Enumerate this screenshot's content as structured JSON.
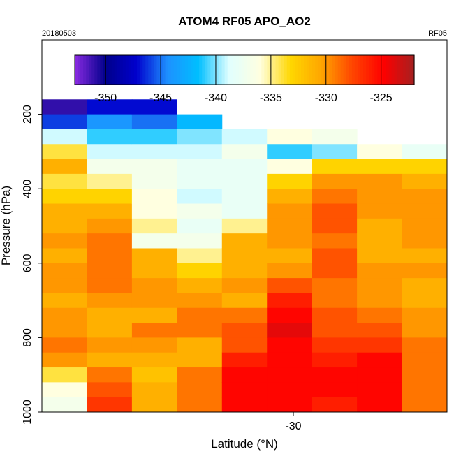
{
  "chart_data": {
    "type": "heatmap",
    "title": "ATOM4 RF05 APO_AO2",
    "top_left_label": "20180503",
    "top_right_label": "RF05",
    "xlabel": "Latitude (°N)",
    "ylabel": "Pressure (hPa)",
    "x_ticks": [
      -30
    ],
    "x_tick_labels": [
      "-30"
    ],
    "y_ticks": [
      200,
      400,
      600,
      800,
      1000
    ],
    "y_tick_labels": [
      "200",
      "400",
      "600",
      "800",
      "1000"
    ],
    "y_range": [
      1000,
      0
    ],
    "y_reversed": true,
    "legend": {
      "type": "colorbar",
      "placement": "top",
      "range": [
        -352.8,
        -322
      ],
      "ticks": [
        -350,
        -345,
        -340,
        -335,
        -330,
        -325
      ],
      "tick_labels": [
        "-350",
        "-345",
        "-340",
        "-335",
        "-330",
        "-325"
      ],
      "colors": [
        "#8a2be2",
        "#00008b",
        "#0000cd",
        "#1e90ff",
        "#00bfff",
        "#e0ffff",
        "#ffffe0",
        "#ffd700",
        "#ffa500",
        "#ff4500",
        "#ff0000",
        "#a52020"
      ]
    },
    "pressure_levels": [
      180,
      220,
      260,
      300,
      340,
      380,
      420,
      460,
      500,
      540,
      580,
      620,
      660,
      700,
      740,
      780,
      820,
      860,
      900,
      940,
      980
    ],
    "column_values": [
      [
        -351,
        -346,
        -339,
        -334,
        -331,
        -334,
        -333,
        -331,
        -331,
        -330,
        -331,
        -330,
        -330,
        -331,
        -330,
        -330,
        -329,
        -330,
        -334,
        -336,
        -337
      ],
      [
        -347,
        -344,
        -341,
        -339,
        -337,
        -335,
        -333,
        -331,
        -330,
        -329,
        -329,
        -329,
        -329,
        -330,
        -331,
        -331,
        -330,
        -331,
        -329,
        -328,
        -327
      ],
      [
        -347,
        -345,
        -341,
        -339,
        -337,
        -337,
        -336,
        -336,
        -335,
        -337,
        -331,
        -331,
        -330,
        -330,
        -331,
        -329,
        -330,
        -331,
        -332,
        -331,
        -331
      ],
      [
        null,
        -342,
        -340,
        -339,
        -338,
        -338,
        -339,
        -337,
        -338,
        -337,
        -335,
        -333,
        -331,
        -330,
        -329,
        -329,
        -331,
        -331,
        -329,
        -329,
        -329
      ],
      [
        null,
        null,
        -339,
        -337,
        -338,
        -338,
        -338,
        -338,
        -335,
        -331,
        -331,
        -331,
        -330,
        -331,
        -329,
        -328,
        -328,
        -326,
        -325,
        -325,
        -325
      ],
      [
        null,
        null,
        -336,
        -341,
        -336,
        -333,
        -331,
        -330,
        -330,
        -330,
        -331,
        -330,
        -328,
        -326,
        -325,
        -324,
        -325,
        -325,
        -325,
        -325,
        -325
      ],
      [
        null,
        null,
        -337,
        -340,
        -333,
        -330,
        -329,
        -328,
        -328,
        -329,
        -328,
        -328,
        -329,
        -329,
        -328,
        -328,
        -327,
        -326,
        -325,
        -325,
        -326
      ],
      [
        null,
        null,
        null,
        -336,
        -333,
        -330,
        -330,
        -330,
        -331,
        -331,
        -331,
        -330,
        -330,
        -330,
        -329,
        -328,
        -327,
        -325,
        -325,
        -325,
        -325
      ],
      [
        null,
        null,
        null,
        -338,
        -333,
        -331,
        -330,
        -330,
        -330,
        -330,
        -331,
        -330,
        -331,
        -331,
        -330,
        -330,
        -329,
        -329,
        -329,
        -329,
        -329
      ]
    ]
  }
}
